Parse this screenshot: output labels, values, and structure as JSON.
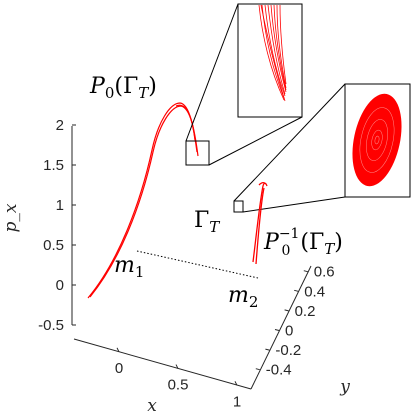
{
  "chart_data": {
    "type": "line",
    "projection": "3d",
    "xlabel": "x",
    "ylabel": "y",
    "zlabel": "p_x",
    "xlim": [
      -0.3,
      1.2
    ],
    "ylim": [
      -0.5,
      0.8
    ],
    "zlim": [
      -0.5,
      2.0
    ],
    "x_ticks": [
      "0",
      "0.5",
      "1"
    ],
    "y_ticks": [
      "-0.4",
      "-0.2",
      "0",
      "0.2",
      "0.4",
      "0.6"
    ],
    "z_ticks": [
      "-0.5",
      "0",
      "0.5",
      "1",
      "1.5",
      "2"
    ],
    "grid": false,
    "colors": {
      "curve": "#ff0000",
      "ink": "#000000",
      "axis": "#262626"
    },
    "annotations": {
      "m1": "m",
      "m1_sub": "1",
      "m2": "m",
      "m2_sub": "2",
      "gamma": "Γ",
      "gamma_sub": "T",
      "p0_gamma": "P",
      "p0_sub": "0",
      "p0_arg": "(Γ",
      "p0_arg_sub": "T",
      "p0_close": ")",
      "pinv": "P",
      "pinv_sub": "0",
      "pinv_sup": "−1",
      "pinv_arg": "(Γ",
      "pinv_arg_sub": "T",
      "pinv_close": ")"
    }
  }
}
